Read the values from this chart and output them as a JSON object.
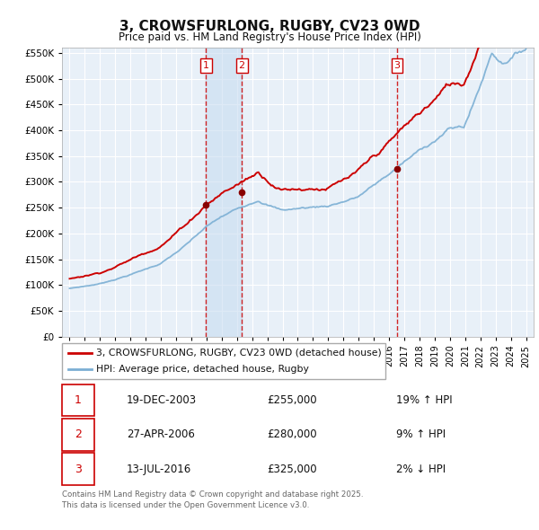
{
  "title": "3, CROWSFURLONG, RUGBY, CV23 0WD",
  "subtitle": "Price paid vs. HM Land Registry's House Price Index (HPI)",
  "legend_line1": "3, CROWSFURLONG, RUGBY, CV23 0WD (detached house)",
  "legend_line2": "HPI: Average price, detached house, Rugby",
  "sale_labels": [
    {
      "num": 1,
      "date": "19-DEC-2003",
      "price": "£255,000",
      "pct": "19% ↑ HPI",
      "year": 2003.97
    },
    {
      "num": 2,
      "date": "27-APR-2006",
      "price": "£280,000",
      "pct": "9% ↑ HPI",
      "year": 2006.32
    },
    {
      "num": 3,
      "date": "13-JUL-2016",
      "price": "£325,000",
      "pct": "2% ↓ HPI",
      "year": 2016.53
    }
  ],
  "hpi_color": "#7bafd4",
  "price_color": "#cc0000",
  "marker_color": "#880000",
  "ylim": [
    0,
    560000
  ],
  "yticks": [
    0,
    50000,
    100000,
    150000,
    200000,
    250000,
    300000,
    350000,
    400000,
    450000,
    500000,
    550000
  ],
  "xlim_start": 1994.5,
  "xlim_end": 2025.5,
  "background_color": "#ffffff",
  "plot_bg_color": "#e8f0f8",
  "grid_color": "#ffffff",
  "vline_color": "#cc0000",
  "shade_color": "#c8ddf0",
  "footnote": "Contains HM Land Registry data © Crown copyright and database right 2025.\nThis data is licensed under the Open Government Licence v3.0."
}
